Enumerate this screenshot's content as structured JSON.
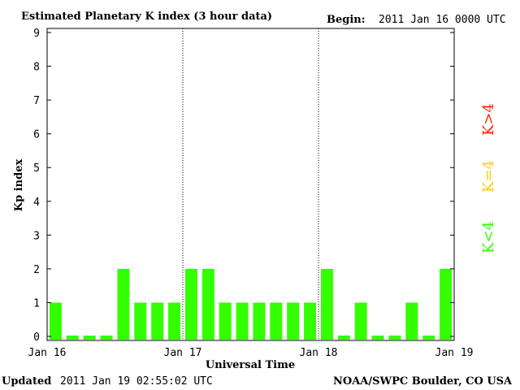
{
  "header": {
    "title": "Estimated Planetary K index (3 hour data)",
    "begin_label": "Begin:",
    "begin_value": "2011 Jan 16 0000 UTC"
  },
  "footer": {
    "updated_label": "Updated",
    "updated_value": "2011 Jan 19 02:55:02 UTC",
    "credit": "NOAA/SWPC Boulder, CO USA"
  },
  "legend": {
    "high": "K>4",
    "equal": "K=4",
    "low": "K<4"
  },
  "colors": {
    "low": "#33ff00",
    "equal": "#ffcc00",
    "high": "#ff2200",
    "axes": "#000000",
    "background": "#ffffff"
  },
  "chart_data": {
    "type": "bar",
    "title": "Estimated Planetary K index (3 hour data)",
    "xlabel": "Universal Time",
    "ylabel": "Kp index",
    "ylim": [
      0,
      9
    ],
    "yticks": [
      "0",
      "1",
      "2",
      "3",
      "4",
      "5",
      "6",
      "7",
      "8",
      "9"
    ],
    "xticks": [
      "Jan 16",
      "Jan 17",
      "Jan 18",
      "Jan 19"
    ],
    "bins_per_day": 8,
    "day_separators": "dotted vertical lines at day boundaries",
    "grid": false,
    "values": [
      1,
      0,
      0,
      0,
      2,
      1,
      1,
      1,
      2,
      2,
      1,
      1,
      1,
      1,
      1,
      1,
      2,
      0,
      1,
      0,
      0,
      1,
      0,
      2
    ]
  }
}
